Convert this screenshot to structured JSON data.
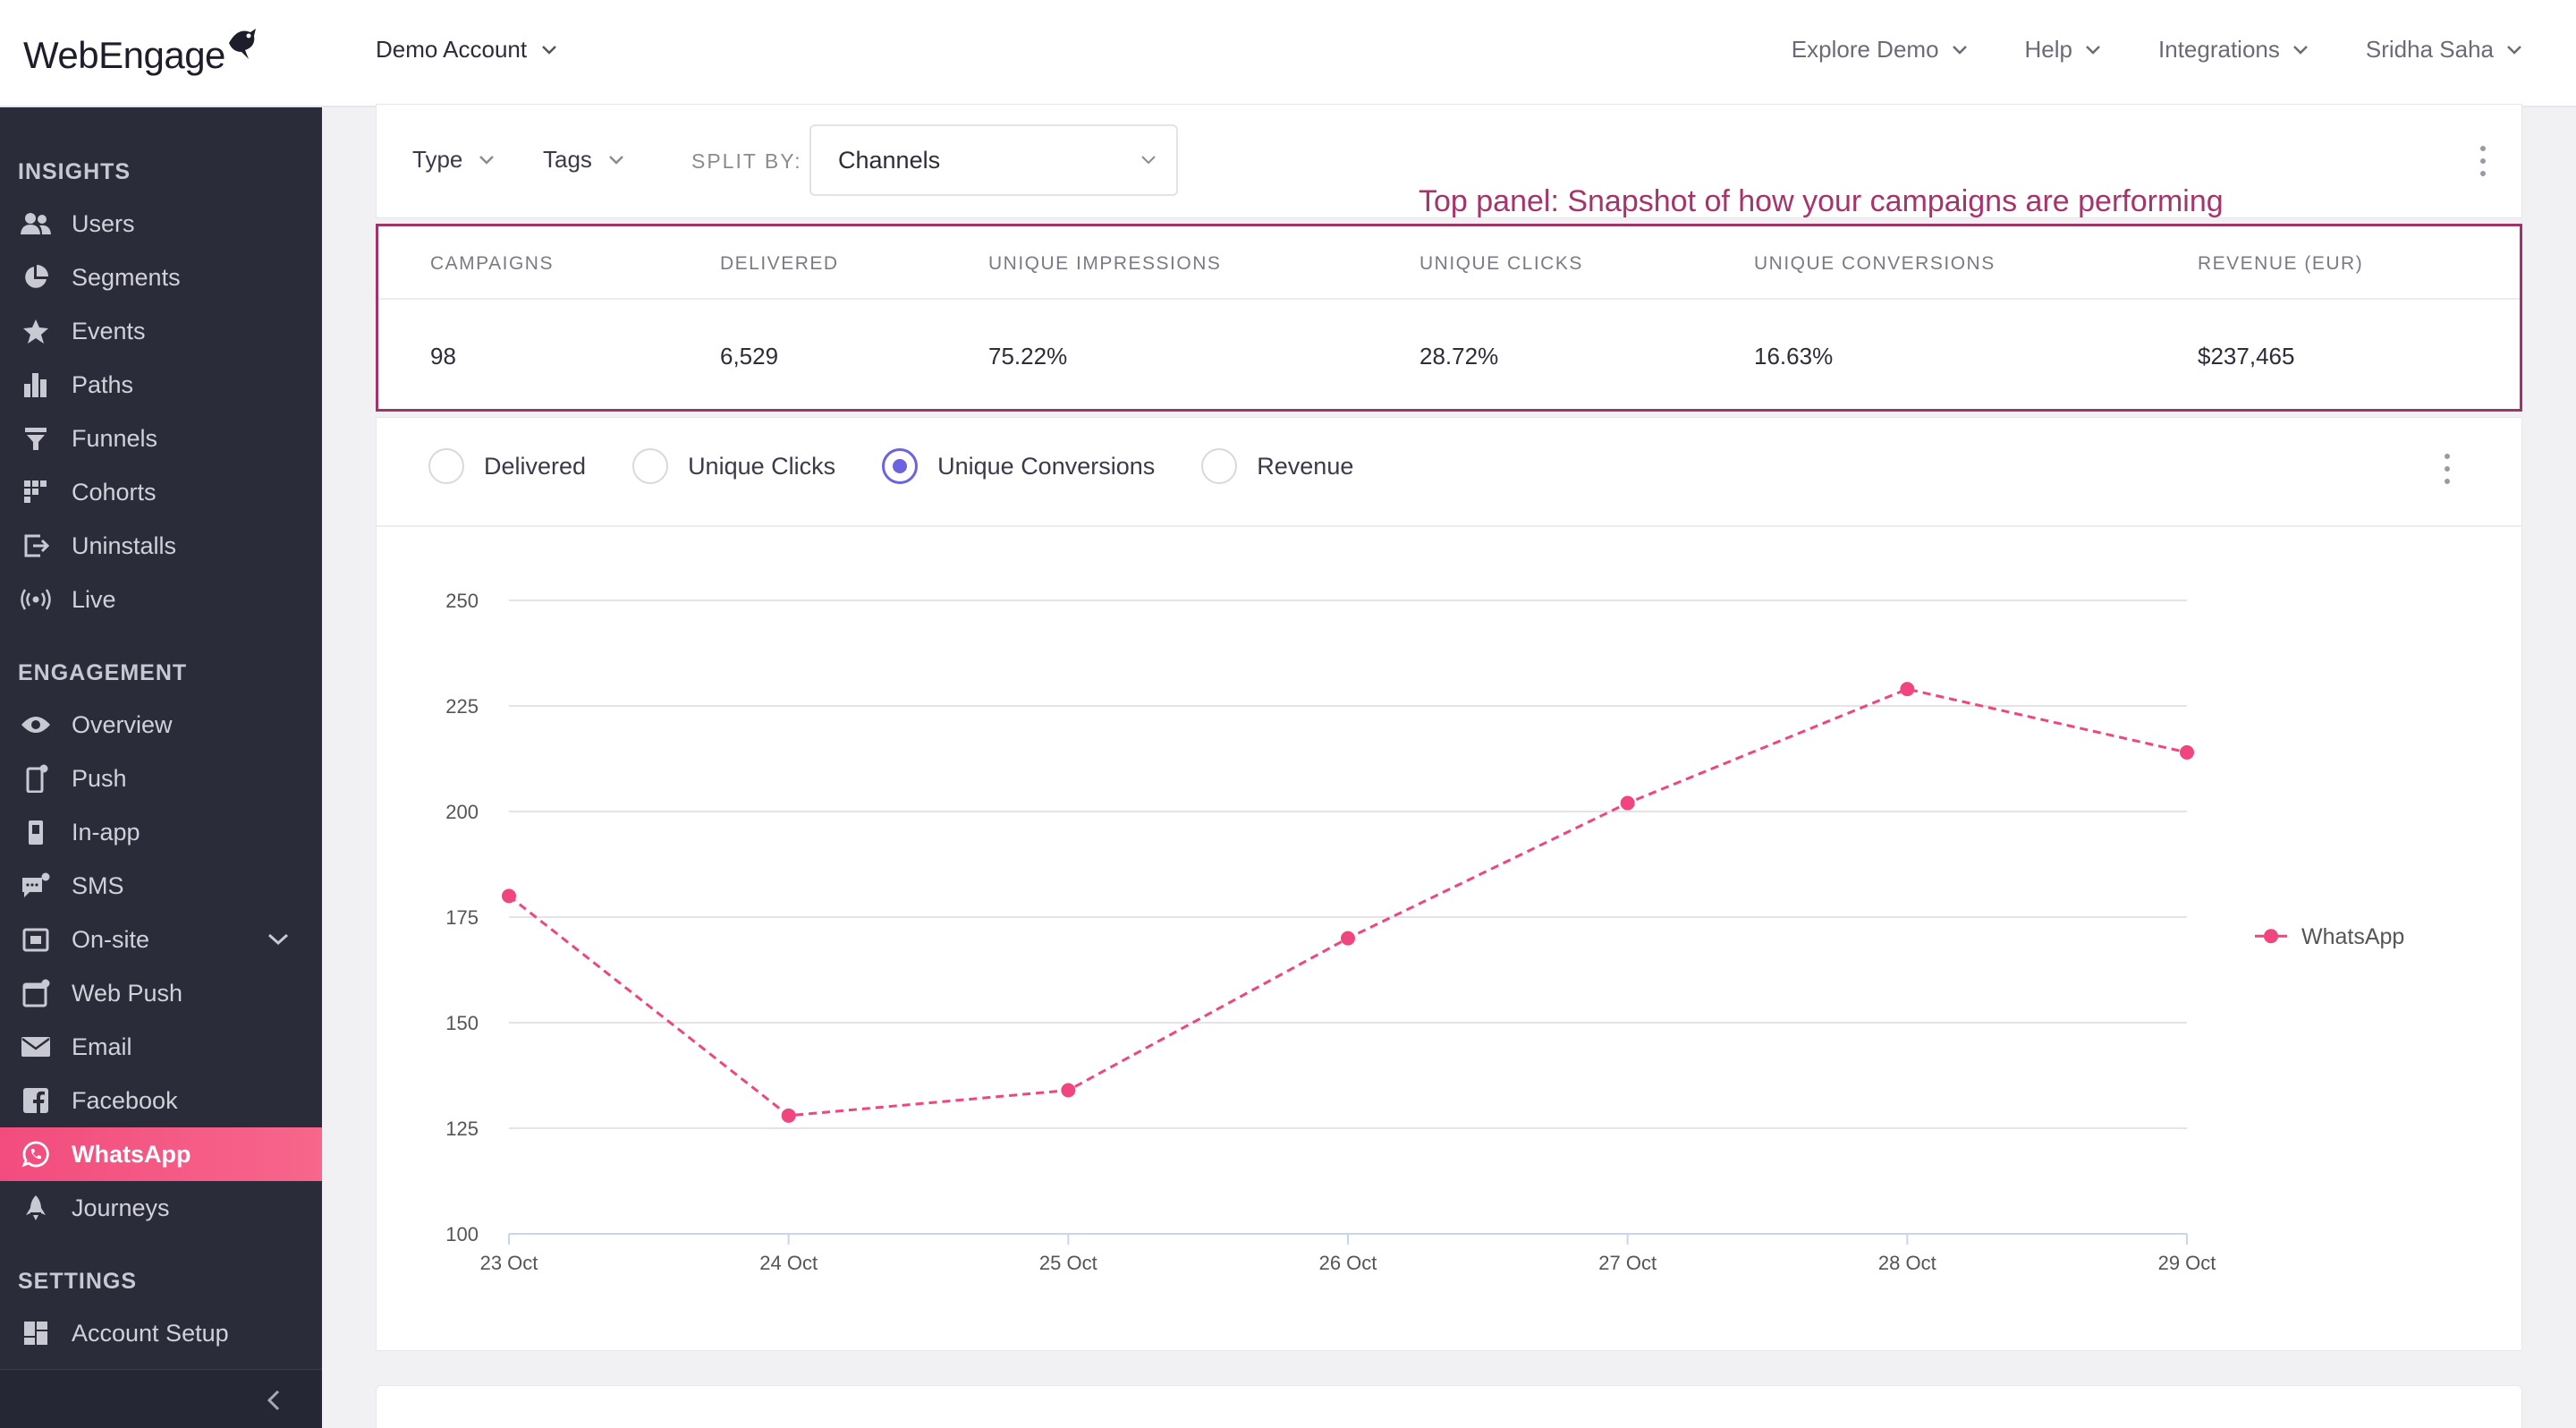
{
  "header": {
    "logo_text": "WebEngage",
    "account": "Demo Account",
    "nav": [
      "Explore Demo",
      "Help",
      "Integrations",
      "Sridha Saha"
    ]
  },
  "sidebar": {
    "sections": [
      {
        "title": "INSIGHTS",
        "items": [
          {
            "label": "Users",
            "icon": "users-icon"
          },
          {
            "label": "Segments",
            "icon": "pie-chart-icon"
          },
          {
            "label": "Events",
            "icon": "star-icon"
          },
          {
            "label": "Paths",
            "icon": "bar-chart-icon"
          },
          {
            "label": "Funnels",
            "icon": "funnel-icon"
          },
          {
            "label": "Cohorts",
            "icon": "grid-icon"
          },
          {
            "label": "Uninstalls",
            "icon": "exit-icon"
          },
          {
            "label": "Live",
            "icon": "broadcast-icon"
          }
        ]
      },
      {
        "title": "ENGAGEMENT",
        "items": [
          {
            "label": "Overview",
            "icon": "eye-icon"
          },
          {
            "label": "Push",
            "icon": "mobile-icon"
          },
          {
            "label": "In-app",
            "icon": "tablet-icon"
          },
          {
            "label": "SMS",
            "icon": "chat-icon"
          },
          {
            "label": "On-site",
            "icon": "window-icon"
          },
          {
            "label": "Web Push",
            "icon": "browser-icon"
          },
          {
            "label": "Email",
            "icon": "envelope-icon"
          },
          {
            "label": "Facebook",
            "icon": "facebook-icon"
          },
          {
            "label": "WhatsApp",
            "icon": "whatsapp-icon"
          },
          {
            "label": "Journeys",
            "icon": "rocket-icon"
          }
        ]
      },
      {
        "title": "SETTINGS",
        "items": [
          {
            "label": "Account Setup",
            "icon": "dashboard-icon"
          }
        ]
      }
    ],
    "active": "WhatsApp"
  },
  "filters": {
    "type_label": "Type",
    "tags_label": "Tags",
    "split_by_label": "SPLIT BY:",
    "split_by_value": "Channels"
  },
  "annotation": "Top panel: Snapshot of how your campaigns are performing",
  "stats": {
    "headers": [
      "CAMPAIGNS",
      "DELIVERED",
      "UNIQUE IMPRESSIONS",
      "UNIQUE CLICKS",
      "UNIQUE CONVERSIONS",
      "REVENUE (EUR)"
    ],
    "values": [
      "98",
      "6,529",
      "75.22%",
      "28.72%",
      "16.63%",
      "$237,465"
    ]
  },
  "metric_options": [
    {
      "label": "Delivered",
      "selected": false
    },
    {
      "label": "Unique Clicks",
      "selected": false
    },
    {
      "label": "Unique Conversions",
      "selected": true
    },
    {
      "label": "Revenue",
      "selected": false
    }
  ],
  "colors": {
    "accent": "#6b63e0",
    "series": "#f0457f",
    "sidebar_bg": "#2b2c3a",
    "highlight_border": "#9e3468"
  },
  "chart_data": {
    "type": "line",
    "x": [
      "23 Oct",
      "24 Oct",
      "25 Oct",
      "26 Oct",
      "27 Oct",
      "28 Oct",
      "29 Oct"
    ],
    "series": [
      {
        "name": "WhatsApp",
        "values": [
          180,
          128,
          134,
          170,
          202,
          229,
          214
        ]
      }
    ],
    "ylim": [
      100,
      250
    ],
    "yticks": [
      100,
      125,
      150,
      175,
      200,
      225,
      250
    ],
    "grid": true,
    "legend": "right",
    "line_style": "dashed"
  }
}
